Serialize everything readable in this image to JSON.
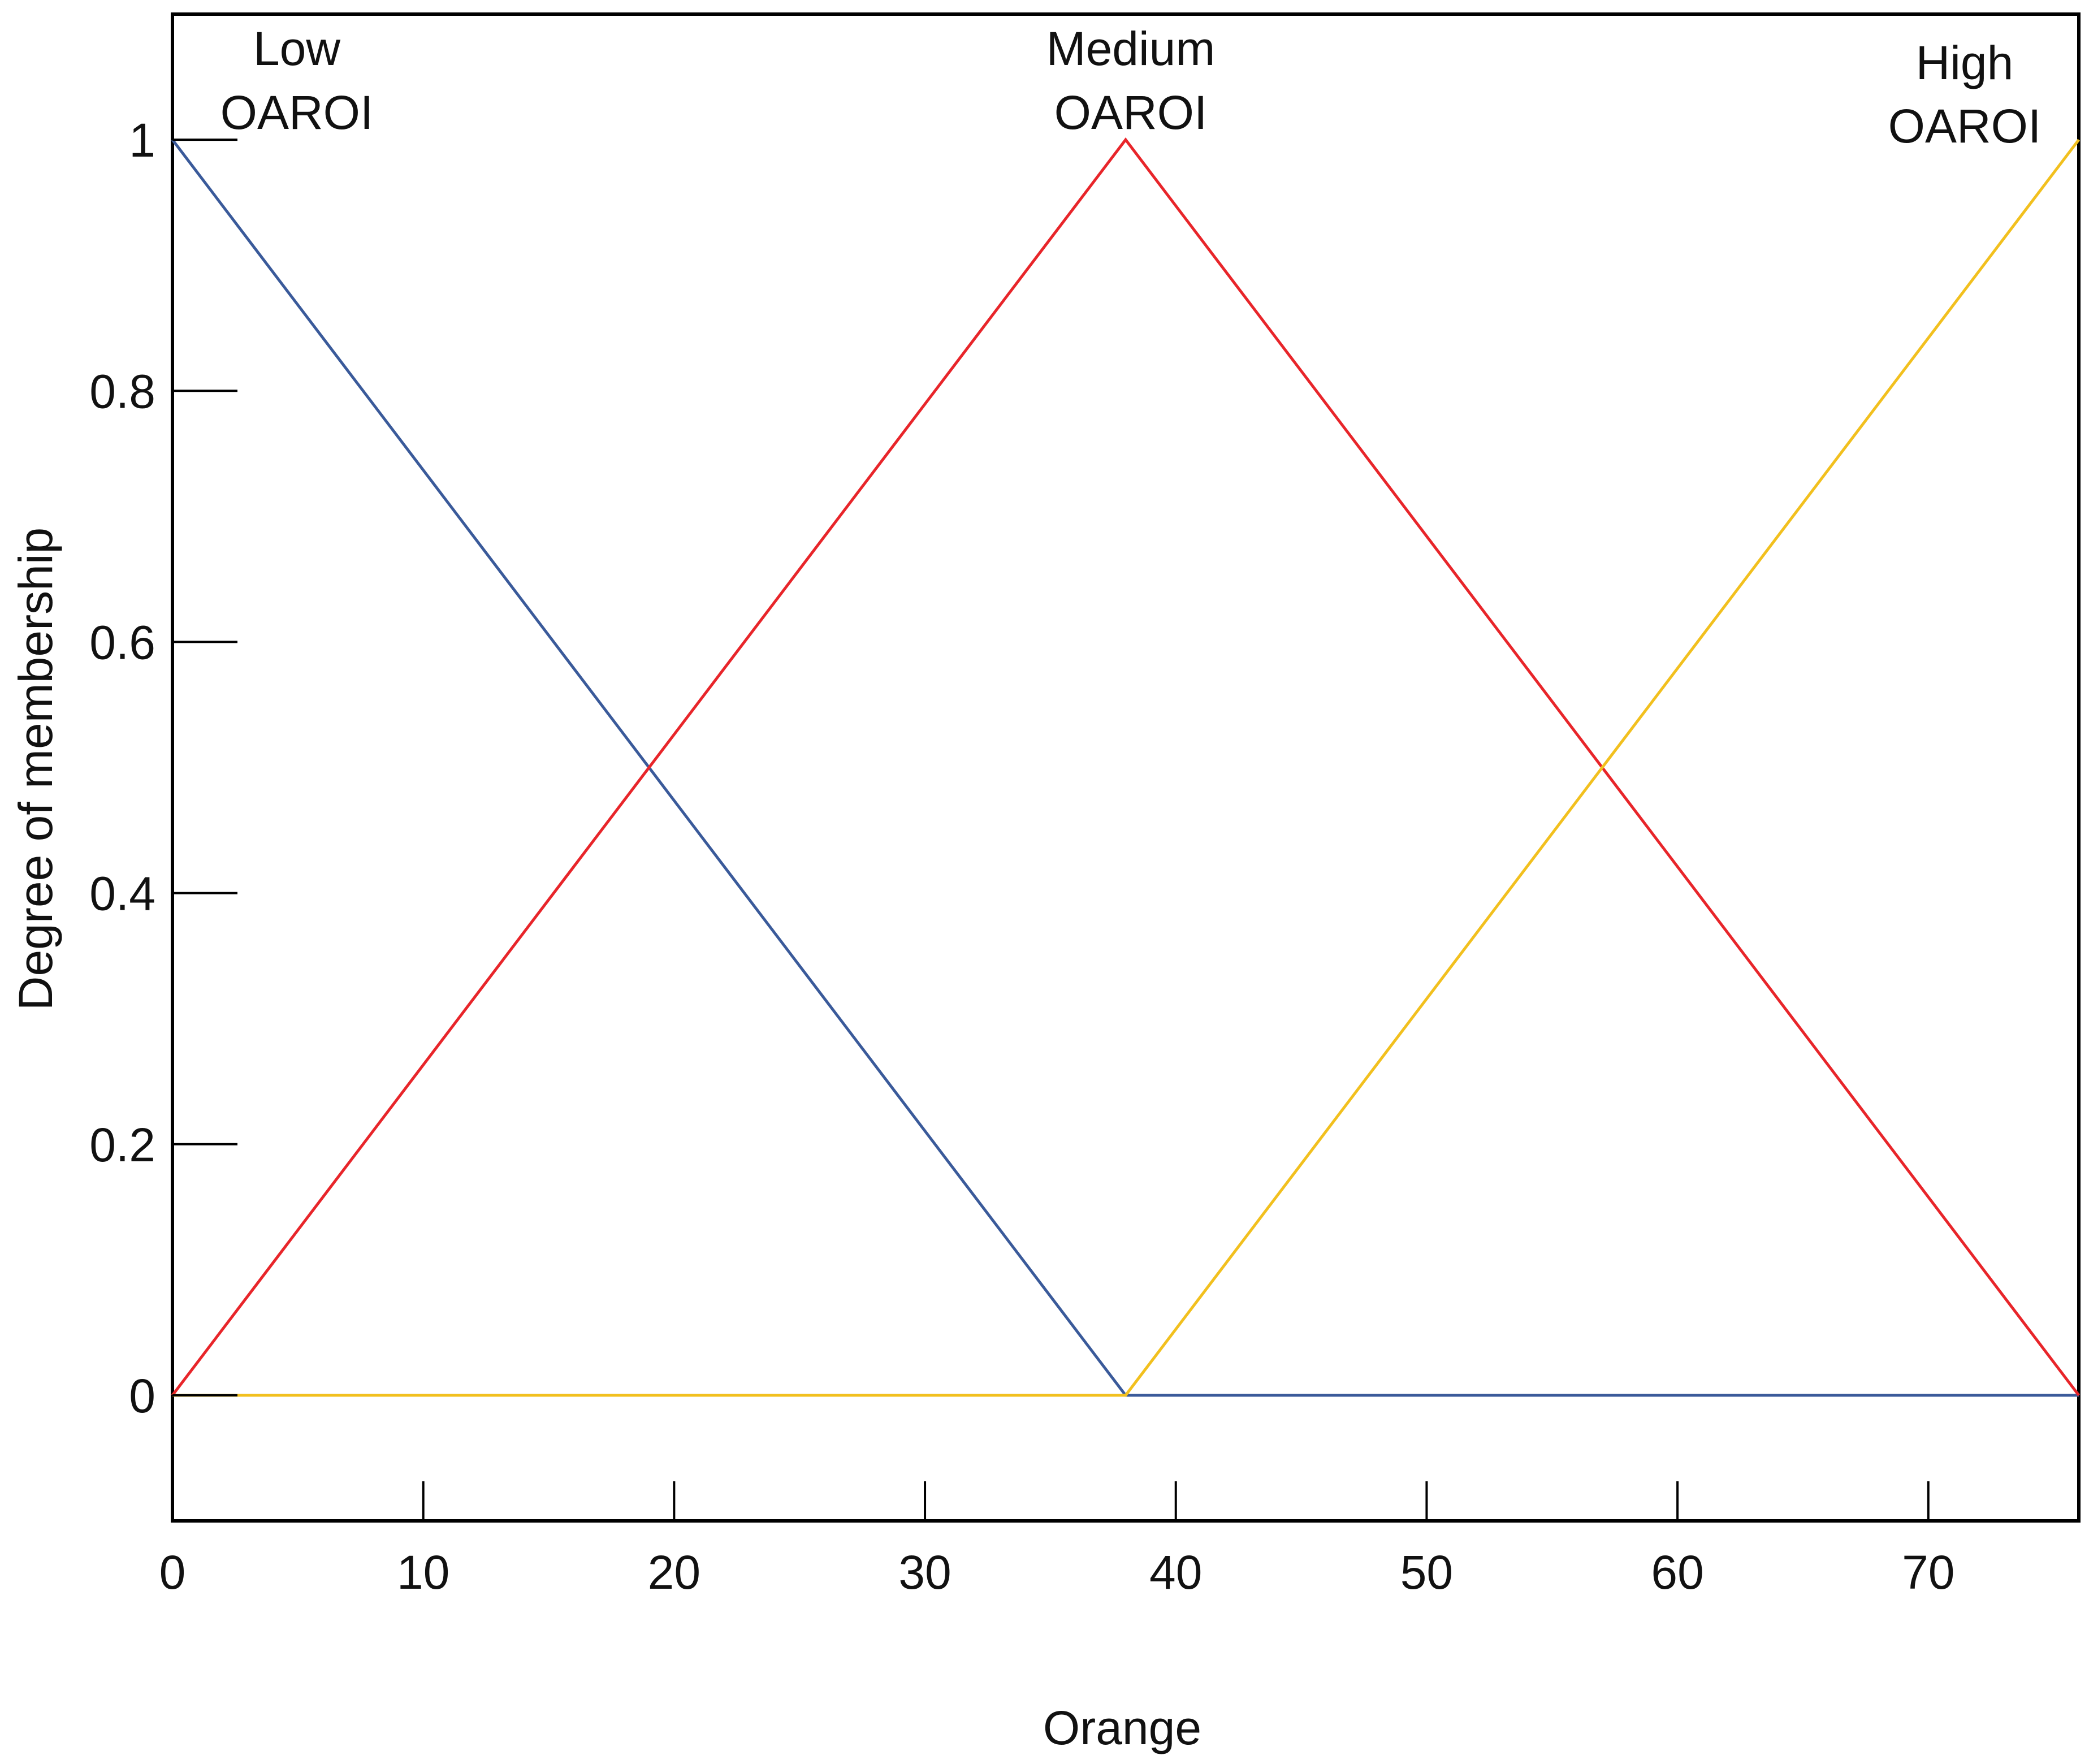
{
  "chart_data": {
    "type": "line",
    "title": "",
    "xlabel": "Orange",
    "ylabel": "Degree of membership",
    "xlim": [
      0,
      76
    ],
    "ylim": [
      -0.1,
      1.1
    ],
    "x_ticks": [
      {
        "value": 0,
        "label": "0"
      },
      {
        "value": 10,
        "label": "10"
      },
      {
        "value": 20,
        "label": "20"
      },
      {
        "value": 30,
        "label": "30"
      },
      {
        "value": 40,
        "label": "40"
      },
      {
        "value": 50,
        "label": "50"
      },
      {
        "value": 60,
        "label": "60"
      },
      {
        "value": 70,
        "label": "70"
      }
    ],
    "y_ticks": [
      {
        "value": 0,
        "label": "0"
      },
      {
        "value": 0.2,
        "label": "0.2"
      },
      {
        "value": 0.4,
        "label": "0.4"
      },
      {
        "value": 0.6,
        "label": "0.6"
      },
      {
        "value": 0.8,
        "label": "0.8"
      },
      {
        "value": 1,
        "label": "1"
      }
    ],
    "grid": false,
    "series": [
      {
        "name": "Low OARoI",
        "label_lines": [
          "Low",
          "OAROI"
        ],
        "color": "#3a5a9a",
        "x": [
          0,
          38,
          76
        ],
        "y": [
          1,
          0,
          0
        ]
      },
      {
        "name": "Medium OARoI",
        "label_lines": [
          "Medium",
          "OAROI"
        ],
        "color": "#e8252a",
        "x": [
          0,
          38,
          76
        ],
        "y": [
          0,
          1,
          0
        ]
      },
      {
        "name": "High OARoI",
        "label_lines": [
          "High",
          "OAROI"
        ],
        "color": "#f2c01e",
        "x": [
          0,
          38,
          76
        ],
        "y": [
          0,
          0,
          1
        ]
      }
    ]
  }
}
